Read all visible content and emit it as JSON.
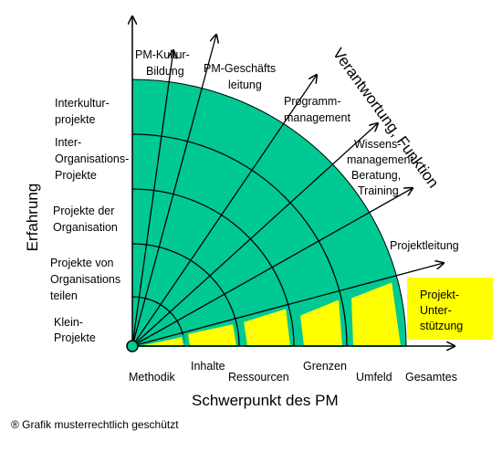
{
  "axes": {
    "y_title": "Erfahrung",
    "x_title": "Schwerpunkt des PM",
    "diagonal_title": "Verantwortung, Funktion"
  },
  "y_levels": [
    [
      "Klein-",
      "Projekte"
    ],
    [
      "Projekte von",
      "Organisations",
      "teilen"
    ],
    [
      "Projekte der",
      "Organisation"
    ],
    [
      "Inter-",
      "Organisations-",
      "Projekte"
    ],
    [
      "Interkultur-",
      "projekte"
    ]
  ],
  "x_levels": [
    "Methodik",
    "Inhalte",
    "Ressourcen",
    "Grenzen",
    "Umfeld",
    "Gesamtes"
  ],
  "functions": {
    "pm_kultur": [
      "PM-Kultur-",
      "Bildung"
    ],
    "pm_geschaeft": [
      "PM-Geschäfts",
      "leitung"
    ],
    "programm": [
      "Programm-",
      "management"
    ],
    "wissen": [
      "Wissens-",
      "management",
      "Beratung,",
      "Training"
    ],
    "projektleitung": "Projektleitung",
    "unterstuetzung": [
      "Projekt-",
      "Unter-",
      "stützung"
    ]
  },
  "colors": {
    "green": "#00C994",
    "yellow": "#FFFF00",
    "line": "#000000"
  },
  "footer": "® Grafik musterrechtlich geschützt"
}
